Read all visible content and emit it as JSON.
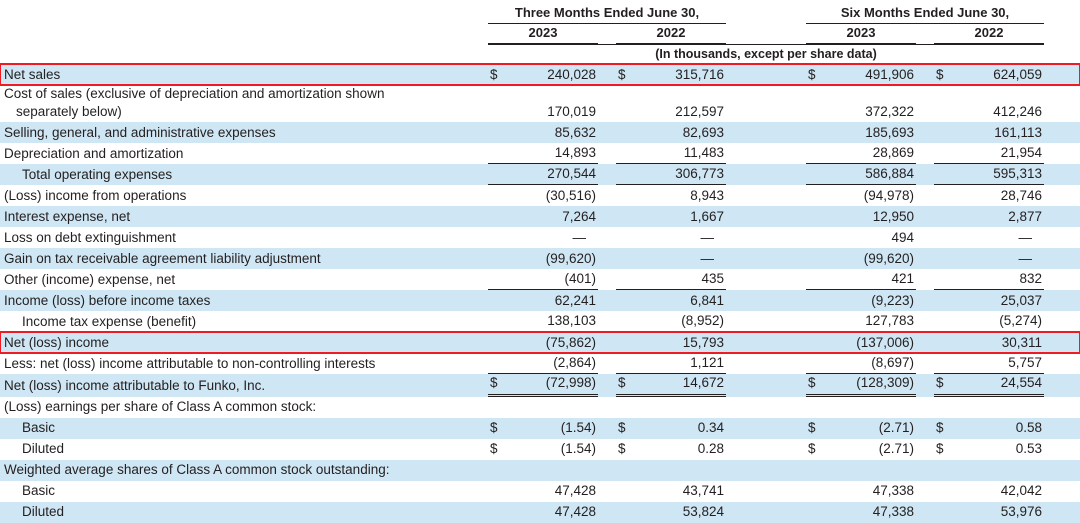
{
  "table": {
    "groups": [
      {
        "label": "Three Months Ended June 30,"
      },
      {
        "label": "Six Months Ended June 30,"
      }
    ],
    "years": [
      "2023",
      "2022",
      "2023",
      "2022"
    ],
    "units_note": "(In thousands, except per share data)",
    "colors": {
      "shade": "#cfe6f4",
      "highlight": "#ed1c24",
      "border": "#231f20",
      "text": "#231f20"
    },
    "rows": [
      {
        "label": "Net sales",
        "dollar": true,
        "shade": true,
        "highlight": true,
        "values": [
          "240,028",
          "315,716",
          "491,906",
          "624,059"
        ]
      },
      {
        "label": "Cost of sales (exclusive of depreciation and amortization shown\nseparately below)",
        "wrap": true,
        "values": [
          "170,019",
          "212,597",
          "372,322",
          "412,246"
        ]
      },
      {
        "label": "Selling, general, and administrative expenses",
        "shade": true,
        "values": [
          "85,632",
          "82,693",
          "185,693",
          "161,113"
        ]
      },
      {
        "label": "Depreciation and amortization",
        "border": "single",
        "values": [
          "14,893",
          "11,483",
          "28,869",
          "21,954"
        ]
      },
      {
        "label": "Total operating expenses",
        "indent": 1,
        "shade": true,
        "border": "single",
        "values": [
          "270,544",
          "306,773",
          "586,884",
          "595,313"
        ]
      },
      {
        "label": "(Loss) income from operations",
        "values": [
          "(30,516)",
          "8,943",
          "(94,978)",
          "28,746"
        ]
      },
      {
        "label": "Interest expense, net",
        "shade": true,
        "values": [
          "7,264",
          "1,667",
          "12,950",
          "2,877"
        ]
      },
      {
        "label": "Loss on debt extinguishment",
        "values": [
          "—",
          "—",
          "494",
          "—"
        ]
      },
      {
        "label": "Gain on tax receivable agreement liability adjustment",
        "shade": true,
        "values": [
          "(99,620)",
          "—",
          "(99,620)",
          "—"
        ]
      },
      {
        "label": "Other (income) expense, net",
        "border": "single",
        "values": [
          "(401)",
          "435",
          "421",
          "832"
        ]
      },
      {
        "label": "Income (loss) before income taxes",
        "shade": true,
        "values": [
          "62,241",
          "6,841",
          "(9,223)",
          "25,037"
        ]
      },
      {
        "label": "Income tax expense (benefit)",
        "indent": 1,
        "border": "single",
        "values": [
          "138,103",
          "(8,952)",
          "127,783",
          "(5,274)"
        ]
      },
      {
        "label": "Net (loss) income",
        "shade": true,
        "highlight": true,
        "values": [
          "(75,862)",
          "15,793",
          "(137,006)",
          "30,311"
        ]
      },
      {
        "label": "Less: net (loss) income attributable to non-controlling interests",
        "border": "single",
        "values": [
          "(2,864)",
          "1,121",
          "(8,697)",
          "5,757"
        ]
      },
      {
        "label": "Net (loss) income attributable to Funko, Inc.",
        "dollar": true,
        "shade": true,
        "border": "double",
        "values": [
          "(72,998)",
          "14,672",
          "(128,309)",
          "24,554"
        ]
      },
      {
        "label": "(Loss) earnings per share of Class A common stock:",
        "values": []
      },
      {
        "label": "Basic",
        "indent": 1,
        "dollar": true,
        "shade": true,
        "values": [
          "(1.54)",
          "0.34",
          "(2.71)",
          "0.58"
        ]
      },
      {
        "label": "Diluted",
        "indent": 1,
        "dollar": true,
        "values": [
          "(1.54)",
          "0.28",
          "(2.71)",
          "0.53"
        ]
      },
      {
        "label": "Weighted average shares of Class A common stock outstanding:",
        "shade": true,
        "values": []
      },
      {
        "label": "Basic",
        "indent": 1,
        "values": [
          "47,428",
          "43,741",
          "47,338",
          "42,042"
        ]
      },
      {
        "label": "Diluted",
        "indent": 1,
        "shade": true,
        "values": [
          "47,428",
          "53,824",
          "47,338",
          "53,976"
        ]
      }
    ]
  }
}
